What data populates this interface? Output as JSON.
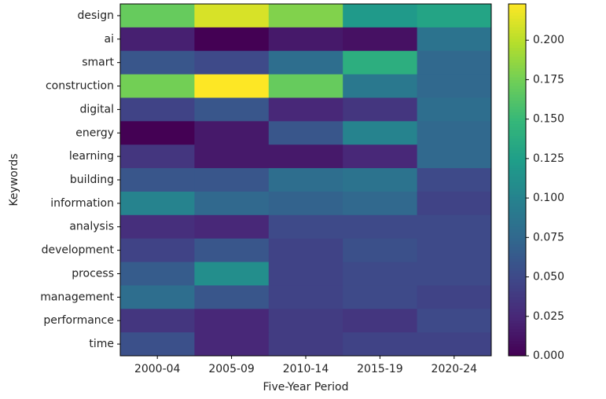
{
  "chart_data": {
    "type": "heatmap",
    "x_label": "Five-Year Period",
    "y_label": "Keywords",
    "x_categories": [
      "2000-04",
      "2005-09",
      "2010-14",
      "2015-19",
      "2020-24"
    ],
    "y_categories": [
      "design",
      "ai",
      "smart",
      "construction",
      "digital",
      "energy",
      "learning",
      "building",
      "information",
      "analysis",
      "development",
      "process",
      "management",
      "performance",
      "time"
    ],
    "values": [
      [
        0.17,
        0.21,
        0.18,
        0.12,
        0.13
      ],
      [
        0.02,
        0.0,
        0.015,
        0.01,
        0.085
      ],
      [
        0.06,
        0.05,
        0.08,
        0.14,
        0.075
      ],
      [
        0.175,
        0.223,
        0.17,
        0.09,
        0.075
      ],
      [
        0.045,
        0.06,
        0.025,
        0.035,
        0.08
      ],
      [
        0.0,
        0.015,
        0.06,
        0.1,
        0.075
      ],
      [
        0.035,
        0.015,
        0.015,
        0.025,
        0.075
      ],
      [
        0.06,
        0.06,
        0.08,
        0.085,
        0.05
      ],
      [
        0.1,
        0.075,
        0.07,
        0.075,
        0.045
      ],
      [
        0.03,
        0.025,
        0.05,
        0.05,
        0.05
      ],
      [
        0.045,
        0.06,
        0.045,
        0.055,
        0.05
      ],
      [
        0.065,
        0.11,
        0.045,
        0.05,
        0.05
      ],
      [
        0.08,
        0.06,
        0.045,
        0.05,
        0.045
      ],
      [
        0.035,
        0.025,
        0.04,
        0.035,
        0.05
      ],
      [
        0.055,
        0.025,
        0.04,
        0.045,
        0.045
      ]
    ],
    "colormap": "viridis",
    "zlim": [
      0,
      0.223
    ],
    "zticks": [
      {
        "value": 0,
        "label": "0.000"
      },
      0.025,
      {
        "value": 0.05,
        "label": "0.050"
      },
      0.075,
      {
        "value": 0.1,
        "label": "0.100"
      },
      0.125,
      {
        "value": 0.15,
        "label": "0.150"
      },
      0.175,
      {
        "value": 0.2,
        "label": "0.200"
      }
    ]
  }
}
